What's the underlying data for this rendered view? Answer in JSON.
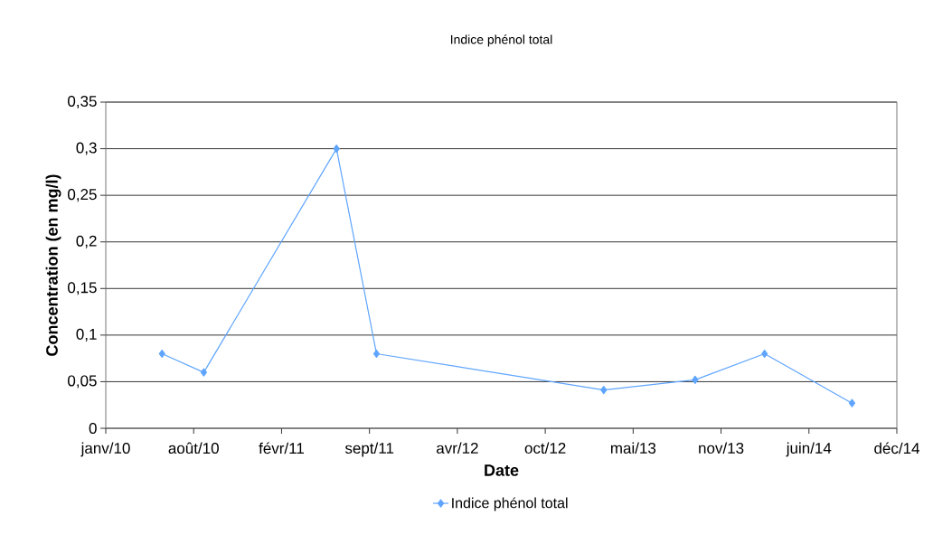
{
  "chart_data": {
    "type": "line",
    "title": "Indice phénol total",
    "xlabel": "Date",
    "ylabel": "Concentration (en mg/l)",
    "x": [
      "2010-05-31",
      "2010-09-03",
      "2011-07-02",
      "2011-10-01",
      "2013-03-01",
      "2013-09-25",
      "2014-03-02",
      "2014-09-17"
    ],
    "series": [
      {
        "name": "Indice phénol total",
        "color": "#5fa5ff",
        "values": [
          0.08,
          0.06,
          0.3,
          0.08,
          0.041,
          0.052,
          0.08,
          0.027
        ]
      }
    ],
    "xlim": [
      "2010-01-23",
      "2014-12-28"
    ],
    "xticks": [
      {
        "value": "2010-01-23",
        "label": "janv/10"
      },
      {
        "value": "2010-08-11",
        "label": "août/10"
      },
      {
        "value": "2011-02-27",
        "label": "févr/11"
      },
      {
        "value": "2011-09-15",
        "label": "sept/11"
      },
      {
        "value": "2012-04-02",
        "label": "avr/12"
      },
      {
        "value": "2012-10-19",
        "label": "oct/12"
      },
      {
        "value": "2013-05-07",
        "label": "mai/13"
      },
      {
        "value": "2013-11-23",
        "label": "nov/13"
      },
      {
        "value": "2014-06-11",
        "label": "juin/14"
      },
      {
        "value": "2014-12-28",
        "label": "déc/14"
      }
    ],
    "ylim": [
      0,
      0.35
    ],
    "yticks": [
      {
        "value": 0,
        "label": "0"
      },
      {
        "value": 0.05,
        "label": "0,05"
      },
      {
        "value": 0.1,
        "label": "0,1"
      },
      {
        "value": 0.15,
        "label": "0,15"
      },
      {
        "value": 0.2,
        "label": "0,2"
      },
      {
        "value": 0.25,
        "label": "0,25"
      },
      {
        "value": 0.3,
        "label": "0,3"
      },
      {
        "value": 0.35,
        "label": "0,35"
      }
    ],
    "grid": "y",
    "legend": "bottom",
    "marker": "diamond",
    "line_style": "solid"
  }
}
